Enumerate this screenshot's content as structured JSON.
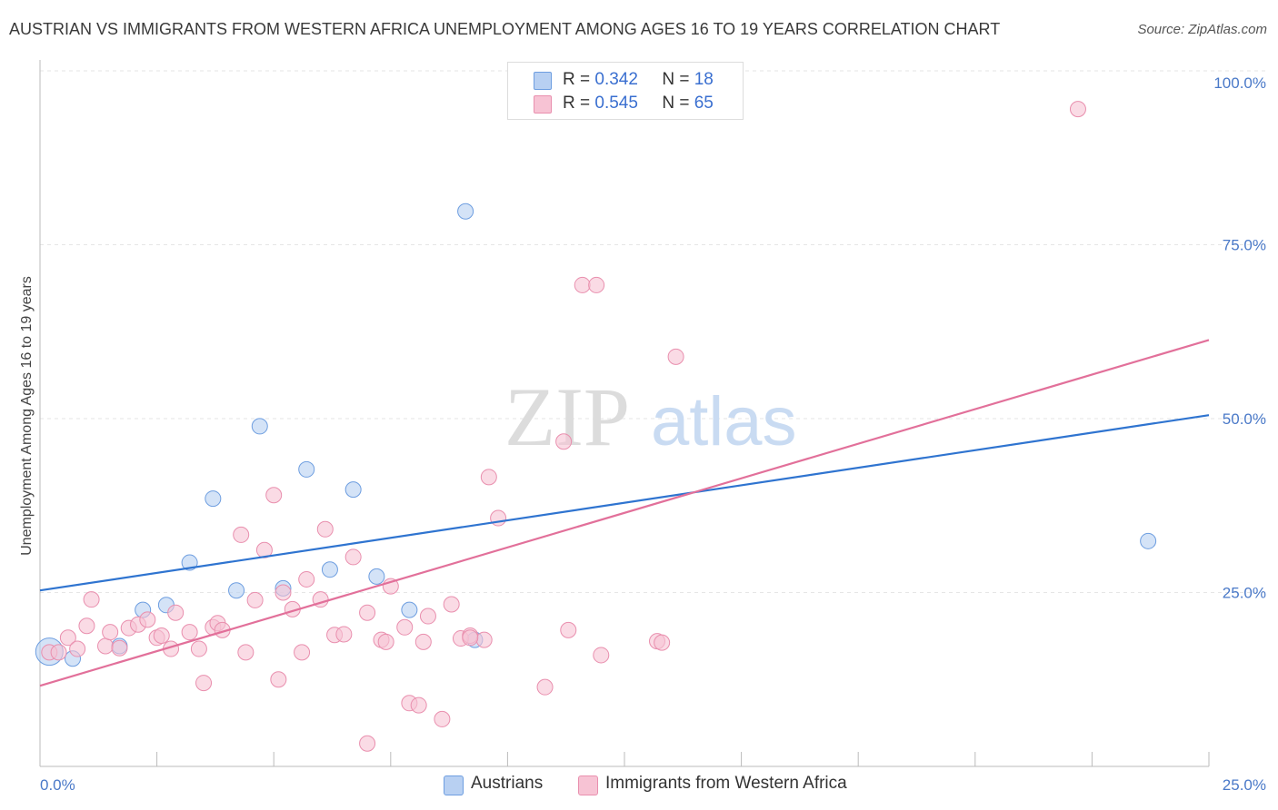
{
  "header": {
    "title": "AUSTRIAN VS IMMIGRANTS FROM WESTERN AFRICA UNEMPLOYMENT AMONG AGES 16 TO 19 YEARS CORRELATION CHART",
    "source": "Source: ZipAtlas.com"
  },
  "legend": {
    "r_label": "R =",
    "n_label": "N =",
    "rows": [
      {
        "r": "0.342",
        "n": "18"
      },
      {
        "r": "0.545",
        "n": "65"
      }
    ]
  },
  "bottom_legend": {
    "austrians": "Austrians",
    "immigrants": "Immigrants from Western Africa"
  },
  "watermark": {
    "zip": "ZIP",
    "atlas": "atlas"
  },
  "colors": {
    "austrians_fill": "#b8d0f2",
    "austrians_stroke": "#6e9ee0",
    "austrians_line": "#2f74d0",
    "immigrants_fill": "#f7c3d4",
    "immigrants_stroke": "#e98fae",
    "immigrants_line": "#e2709a",
    "tick_text": "#4a79c8",
    "grid": "#e6e6e6"
  },
  "chart_data": {
    "type": "scatter",
    "title": "AUSTRIAN VS IMMIGRANTS FROM WESTERN AFRICA UNEMPLOYMENT AMONG AGES 16 TO 19 YEARS CORRELATION CHART",
    "xlabel": "",
    "ylabel": "Unemployment Among Ages 16 to 19 years",
    "xlim": [
      0,
      25
    ],
    "ylim": [
      0,
      100
    ],
    "x_tick_labels": [
      "0.0%",
      "25.0%"
    ],
    "y_ticks": [
      25,
      50,
      75,
      100
    ],
    "y_tick_labels": [
      "25.0%",
      "50.0%",
      "75.0%",
      "100.0%"
    ],
    "grid": true,
    "legend_position": "top-center",
    "series": [
      {
        "name": "Austrians",
        "trend": {
          "x": [
            0,
            25
          ],
          "y": [
            25.3,
            50.5
          ]
        },
        "points": [
          {
            "x": 0.2,
            "y": 16.5,
            "big": true
          },
          {
            "x": 0.7,
            "y": 15.5
          },
          {
            "x": 1.7,
            "y": 17.3
          },
          {
            "x": 2.2,
            "y": 22.5
          },
          {
            "x": 2.7,
            "y": 23.2
          },
          {
            "x": 3.2,
            "y": 29.3
          },
          {
            "x": 3.7,
            "y": 38.5
          },
          {
            "x": 4.2,
            "y": 25.3
          },
          {
            "x": 4.7,
            "y": 48.9
          },
          {
            "x": 5.2,
            "y": 25.6
          },
          {
            "x": 5.7,
            "y": 42.7
          },
          {
            "x": 6.2,
            "y": 28.3
          },
          {
            "x": 6.7,
            "y": 39.8
          },
          {
            "x": 7.2,
            "y": 27.3
          },
          {
            "x": 7.9,
            "y": 22.5
          },
          {
            "x": 9.1,
            "y": 79.8
          },
          {
            "x": 9.3,
            "y": 18.2
          },
          {
            "x": 23.7,
            "y": 32.4
          }
        ]
      },
      {
        "name": "Immigrants from Western Africa",
        "trend": {
          "x": [
            0,
            25
          ],
          "y": [
            11.6,
            61.3
          ]
        },
        "points": [
          {
            "x": 0.2,
            "y": 16.4
          },
          {
            "x": 0.4,
            "y": 16.4
          },
          {
            "x": 0.6,
            "y": 18.5
          },
          {
            "x": 0.8,
            "y": 16.9
          },
          {
            "x": 1.0,
            "y": 20.2
          },
          {
            "x": 1.1,
            "y": 24.0
          },
          {
            "x": 1.4,
            "y": 17.3
          },
          {
            "x": 1.5,
            "y": 19.3
          },
          {
            "x": 1.7,
            "y": 17.0
          },
          {
            "x": 1.9,
            "y": 19.9
          },
          {
            "x": 2.1,
            "y": 20.4
          },
          {
            "x": 2.3,
            "y": 21.1
          },
          {
            "x": 2.5,
            "y": 18.5
          },
          {
            "x": 2.6,
            "y": 18.8
          },
          {
            "x": 2.8,
            "y": 16.9
          },
          {
            "x": 2.9,
            "y": 22.1
          },
          {
            "x": 3.2,
            "y": 19.3
          },
          {
            "x": 3.4,
            "y": 16.9
          },
          {
            "x": 3.5,
            "y": 12.0
          },
          {
            "x": 3.7,
            "y": 20.0
          },
          {
            "x": 3.8,
            "y": 20.6
          },
          {
            "x": 3.9,
            "y": 19.6
          },
          {
            "x": 4.3,
            "y": 33.3
          },
          {
            "x": 4.4,
            "y": 16.4
          },
          {
            "x": 4.6,
            "y": 23.9
          },
          {
            "x": 4.8,
            "y": 31.1
          },
          {
            "x": 5.0,
            "y": 39.0
          },
          {
            "x": 5.1,
            "y": 12.5
          },
          {
            "x": 5.2,
            "y": 25.0
          },
          {
            "x": 5.4,
            "y": 22.6
          },
          {
            "x": 5.6,
            "y": 16.4
          },
          {
            "x": 5.7,
            "y": 26.9
          },
          {
            "x": 6.0,
            "y": 24.0
          },
          {
            "x": 6.1,
            "y": 34.1
          },
          {
            "x": 6.3,
            "y": 18.9
          },
          {
            "x": 6.5,
            "y": 19.0
          },
          {
            "x": 6.7,
            "y": 30.1
          },
          {
            "x": 7.0,
            "y": 22.1
          },
          {
            "x": 7.0,
            "y": 3.3
          },
          {
            "x": 7.3,
            "y": 18.2
          },
          {
            "x": 7.4,
            "y": 17.9
          },
          {
            "x": 7.5,
            "y": 25.9
          },
          {
            "x": 7.8,
            "y": 20.0
          },
          {
            "x": 7.9,
            "y": 9.1
          },
          {
            "x": 8.1,
            "y": 8.8
          },
          {
            "x": 8.2,
            "y": 17.9
          },
          {
            "x": 8.3,
            "y": 21.6
          },
          {
            "x": 8.6,
            "y": 6.8
          },
          {
            "x": 8.8,
            "y": 23.3
          },
          {
            "x": 9.0,
            "y": 18.4
          },
          {
            "x": 9.2,
            "y": 18.8
          },
          {
            "x": 9.5,
            "y": 18.2
          },
          {
            "x": 9.6,
            "y": 41.6
          },
          {
            "x": 9.8,
            "y": 35.7
          },
          {
            "x": 10.8,
            "y": 11.4
          },
          {
            "x": 11.2,
            "y": 46.7
          },
          {
            "x": 11.3,
            "y": 19.6
          },
          {
            "x": 11.6,
            "y": 69.2
          },
          {
            "x": 11.9,
            "y": 69.2
          },
          {
            "x": 12.0,
            "y": 16.0
          },
          {
            "x": 13.2,
            "y": 18.0
          },
          {
            "x": 13.3,
            "y": 17.8
          },
          {
            "x": 13.6,
            "y": 58.9
          },
          {
            "x": 22.2,
            "y": 94.5
          },
          {
            "x": 9.2,
            "y": 18.5
          }
        ]
      }
    ]
  }
}
